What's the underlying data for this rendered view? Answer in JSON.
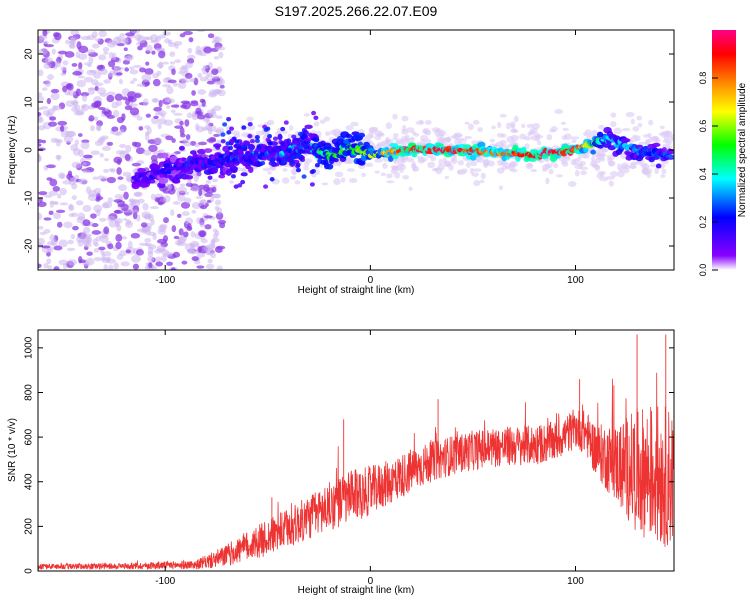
{
  "title": "S197.2025.266.22.07.E09",
  "colors": {
    "axis": "#000000",
    "snr_line": "#ee3333",
    "points_light": "#d8c4f2",
    "points_dark": "#7722dd"
  },
  "chart_data": [
    {
      "type": "heatmap",
      "name": "spectrogram",
      "xlabel": "Height of straight line (km)",
      "ylabel": "Frequency (Hz)",
      "xlim": [
        -162,
        148
      ],
      "ylim": [
        -25,
        25
      ],
      "x_ticks": [
        -100,
        0,
        100
      ],
      "y_ticks": [
        -20,
        -10,
        0,
        10,
        20
      ],
      "x_tick_labels": [
        "-100",
        "0",
        "100"
      ],
      "y_tick_labels": [
        "-20",
        "-10",
        "0",
        "10",
        "20"
      ],
      "colorbar": {
        "label": "Normalized spectral amplitude",
        "range": [
          0,
          1
        ],
        "ticks": [
          0.0,
          0.2,
          0.4,
          0.6,
          0.8
        ],
        "tick_labels": [
          "0.0",
          "0.2",
          "0.4",
          "0.6",
          "0.8"
        ],
        "colormap": [
          "#ffffff",
          "#8800ff",
          "#0000ff",
          "#00ffff",
          "#00ff00",
          "#ffff00",
          "#ff8800",
          "#ff0000",
          "#ff0088"
        ]
      },
      "ridge": [
        {
          "x": -110,
          "y": -6,
          "amp": 0.15
        },
        {
          "x": -90,
          "y": -3,
          "amp": 0.2
        },
        {
          "x": -70,
          "y": -2,
          "amp": 0.25
        },
        {
          "x": -50,
          "y": -1,
          "amp": 0.3
        },
        {
          "x": -30,
          "y": 1,
          "amp": 0.35
        },
        {
          "x": -20,
          "y": -1.5,
          "amp": 0.5
        },
        {
          "x": -10,
          "y": 0.5,
          "amp": 0.5
        },
        {
          "x": 0,
          "y": -1,
          "amp": 0.6
        },
        {
          "x": 20,
          "y": 0,
          "amp": 0.9
        },
        {
          "x": 40,
          "y": 0,
          "amp": 0.9
        },
        {
          "x": 60,
          "y": -0.5,
          "amp": 0.75
        },
        {
          "x": 80,
          "y": -1,
          "amp": 0.95
        },
        {
          "x": 100,
          "y": 0,
          "amp": 0.9
        },
        {
          "x": 115,
          "y": 2.5,
          "amp": 0.35
        },
        {
          "x": 130,
          "y": 0,
          "amp": 0.3
        },
        {
          "x": 145,
          "y": -1,
          "amp": 0.25
        }
      ]
    },
    {
      "type": "line",
      "name": "snr",
      "xlabel": "Height of straight line (km)",
      "ylabel": "SNR (10 * v/v)",
      "xlim": [
        -162,
        148
      ],
      "ylim": [
        0,
        1080
      ],
      "x_ticks": [
        -100,
        0,
        100
      ],
      "y_ticks": [
        0,
        200,
        400,
        600,
        800,
        1000
      ],
      "x_tick_labels": [
        "-100",
        "0",
        "100"
      ],
      "y_tick_labels": [
        "0",
        "200",
        "400",
        "600",
        "800",
        "1000"
      ],
      "envelope": {
        "x": [
          -162,
          -120,
          -85,
          -78,
          -70,
          -60,
          -50,
          -40,
          -30,
          -20,
          -10,
          0,
          10,
          20,
          30,
          40,
          50,
          60,
          70,
          80,
          90,
          100,
          105,
          110,
          120,
          130,
          140,
          148
        ],
        "mean": [
          20,
          22,
          28,
          45,
          70,
          110,
          150,
          190,
          240,
          290,
          330,
          360,
          400,
          450,
          490,
          520,
          540,
          555,
          560,
          565,
          580,
          640,
          620,
          540,
          480,
          450,
          430,
          420
        ],
        "spread": [
          12,
          14,
          20,
          35,
          50,
          70,
          80,
          90,
          100,
          110,
          120,
          110,
          100,
          100,
          90,
          90,
          90,
          90,
          90,
          90,
          90,
          90,
          100,
          120,
          180,
          280,
          320,
          320
        ]
      },
      "peaks": [
        {
          "x": -48,
          "y": 330
        },
        {
          "x": -13,
          "y": 680
        },
        {
          "x": 33,
          "y": 770
        },
        {
          "x": 102,
          "y": 860
        },
        {
          "x": 130,
          "y": 1060
        },
        {
          "x": 144,
          "y": 1060
        }
      ]
    }
  ]
}
